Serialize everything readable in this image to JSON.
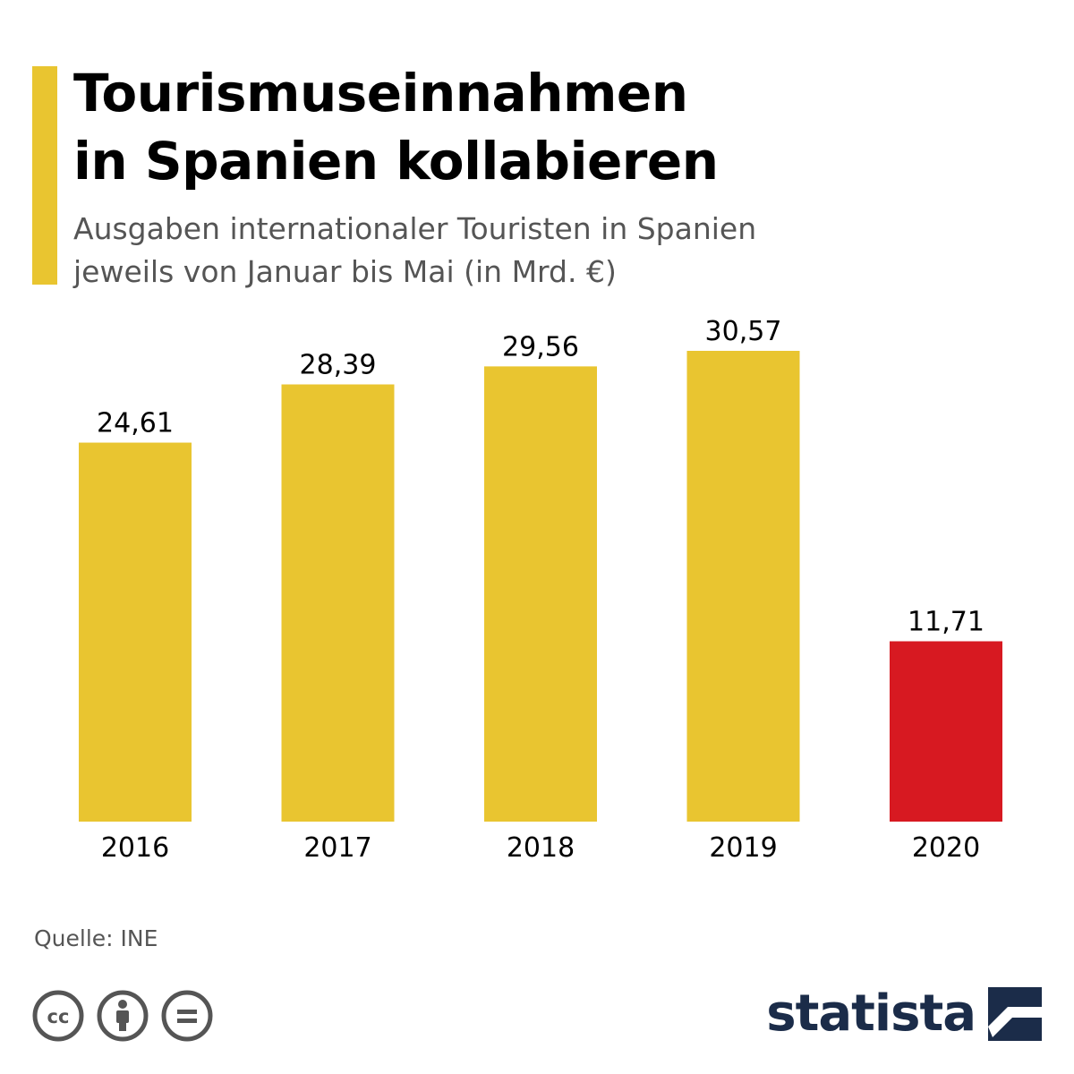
{
  "header": {
    "title_line1": "Tourismuseinnahmen",
    "title_line2": "in Spanien kollabieren",
    "subtitle_line1": "Ausgaben internationaler Touristen in Spanien",
    "subtitle_line2": "jeweils von Januar bis Mai (in Mrd. €)"
  },
  "footer": {
    "source": "Quelle: INE",
    "brand": "statista",
    "license_icons": [
      "cc-icon",
      "by-attribution-icon",
      "no-derivatives-icon"
    ]
  },
  "colors": {
    "accent": "#e9c530",
    "bar_default": "#e9c530",
    "bar_highlight": "#d71921",
    "brand": "#1b2c49"
  },
  "chart_data": {
    "type": "bar",
    "categories": [
      "2016",
      "2017",
      "2018",
      "2019",
      "2020"
    ],
    "values": [
      24.61,
      28.39,
      29.56,
      30.57,
      11.71
    ],
    "value_labels": [
      "24,61",
      "28,39",
      "29,56",
      "30,57",
      "11,71"
    ],
    "highlight_index": 4,
    "unit": "Mrd. €",
    "ylim": [
      0,
      30.57
    ],
    "grid": false,
    "y_axis_shown": false
  }
}
